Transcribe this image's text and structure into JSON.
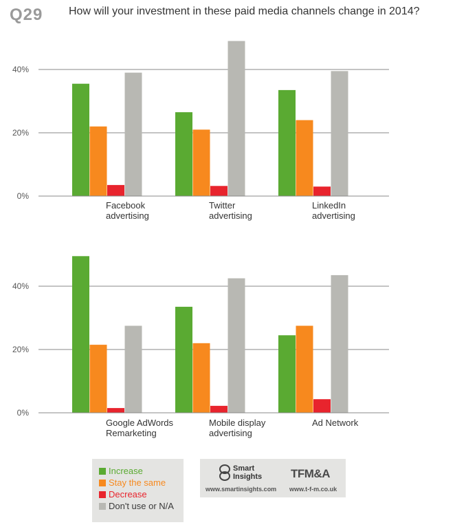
{
  "header": {
    "question_number": "Q29",
    "title": "How will your investment in these paid media channels change in 2014?"
  },
  "chart_data": [
    {
      "type": "bar",
      "categories": [
        [
          "Facebook",
          "advertising"
        ],
        [
          "Twitter",
          "advertising"
        ],
        [
          "LinkedIn",
          "advertising"
        ]
      ],
      "series": [
        {
          "name": "Increase",
          "color": "#5aaa32",
          "values": [
            35.5,
            26.5,
            33.5
          ]
        },
        {
          "name": "Stay the same",
          "color": "#f7891e",
          "values": [
            22,
            21,
            24
          ]
        },
        {
          "name": "Decrease",
          "color": "#e8242d",
          "values": [
            3.5,
            3.2,
            3.0
          ]
        },
        {
          "name": "Don't use or N/A",
          "color": "#b8b8b3",
          "values": [
            39,
            49,
            39.5
          ]
        }
      ],
      "ylim": [
        0,
        40
      ],
      "yticks": [
        "0%",
        "20%",
        "40%"
      ],
      "grid": true
    },
    {
      "type": "bar",
      "categories": [
        [
          "Google AdWords",
          "Remarketing"
        ],
        [
          "Mobile display",
          "advertising"
        ],
        [
          "Ad Network"
        ]
      ],
      "series": [
        {
          "name": "Increase",
          "color": "#5aaa32",
          "values": [
            49.5,
            33.5,
            24.5
          ]
        },
        {
          "name": "Stay the same",
          "color": "#f7891e",
          "values": [
            21.5,
            22,
            27.5
          ]
        },
        {
          "name": "Decrease",
          "color": "#e8242d",
          "values": [
            1.5,
            2.2,
            4.3
          ]
        },
        {
          "name": "Don't use or N/A",
          "color": "#b8b8b3",
          "values": [
            27.5,
            42.5,
            43.5
          ]
        }
      ],
      "ylim": [
        0,
        40
      ],
      "yticks": [
        "0%",
        "20%",
        "40%"
      ],
      "grid": true
    }
  ],
  "legend": {
    "items": [
      {
        "label": "Increase",
        "color": "#5aaa32"
      },
      {
        "label": "Stay the same",
        "color": "#f7891e"
      },
      {
        "label": "Decrease",
        "color": "#e8242d"
      },
      {
        "label": "Don't use or N/A",
        "color": "#3a3a3a",
        "swatch": "#b8b8b3"
      }
    ]
  },
  "logos": {
    "smart_insights": "Smart Insights",
    "smart_url": "www.smartinsights.com",
    "tfm": "TFM&A",
    "tfm_url": "www.t-f-m.co.uk"
  }
}
